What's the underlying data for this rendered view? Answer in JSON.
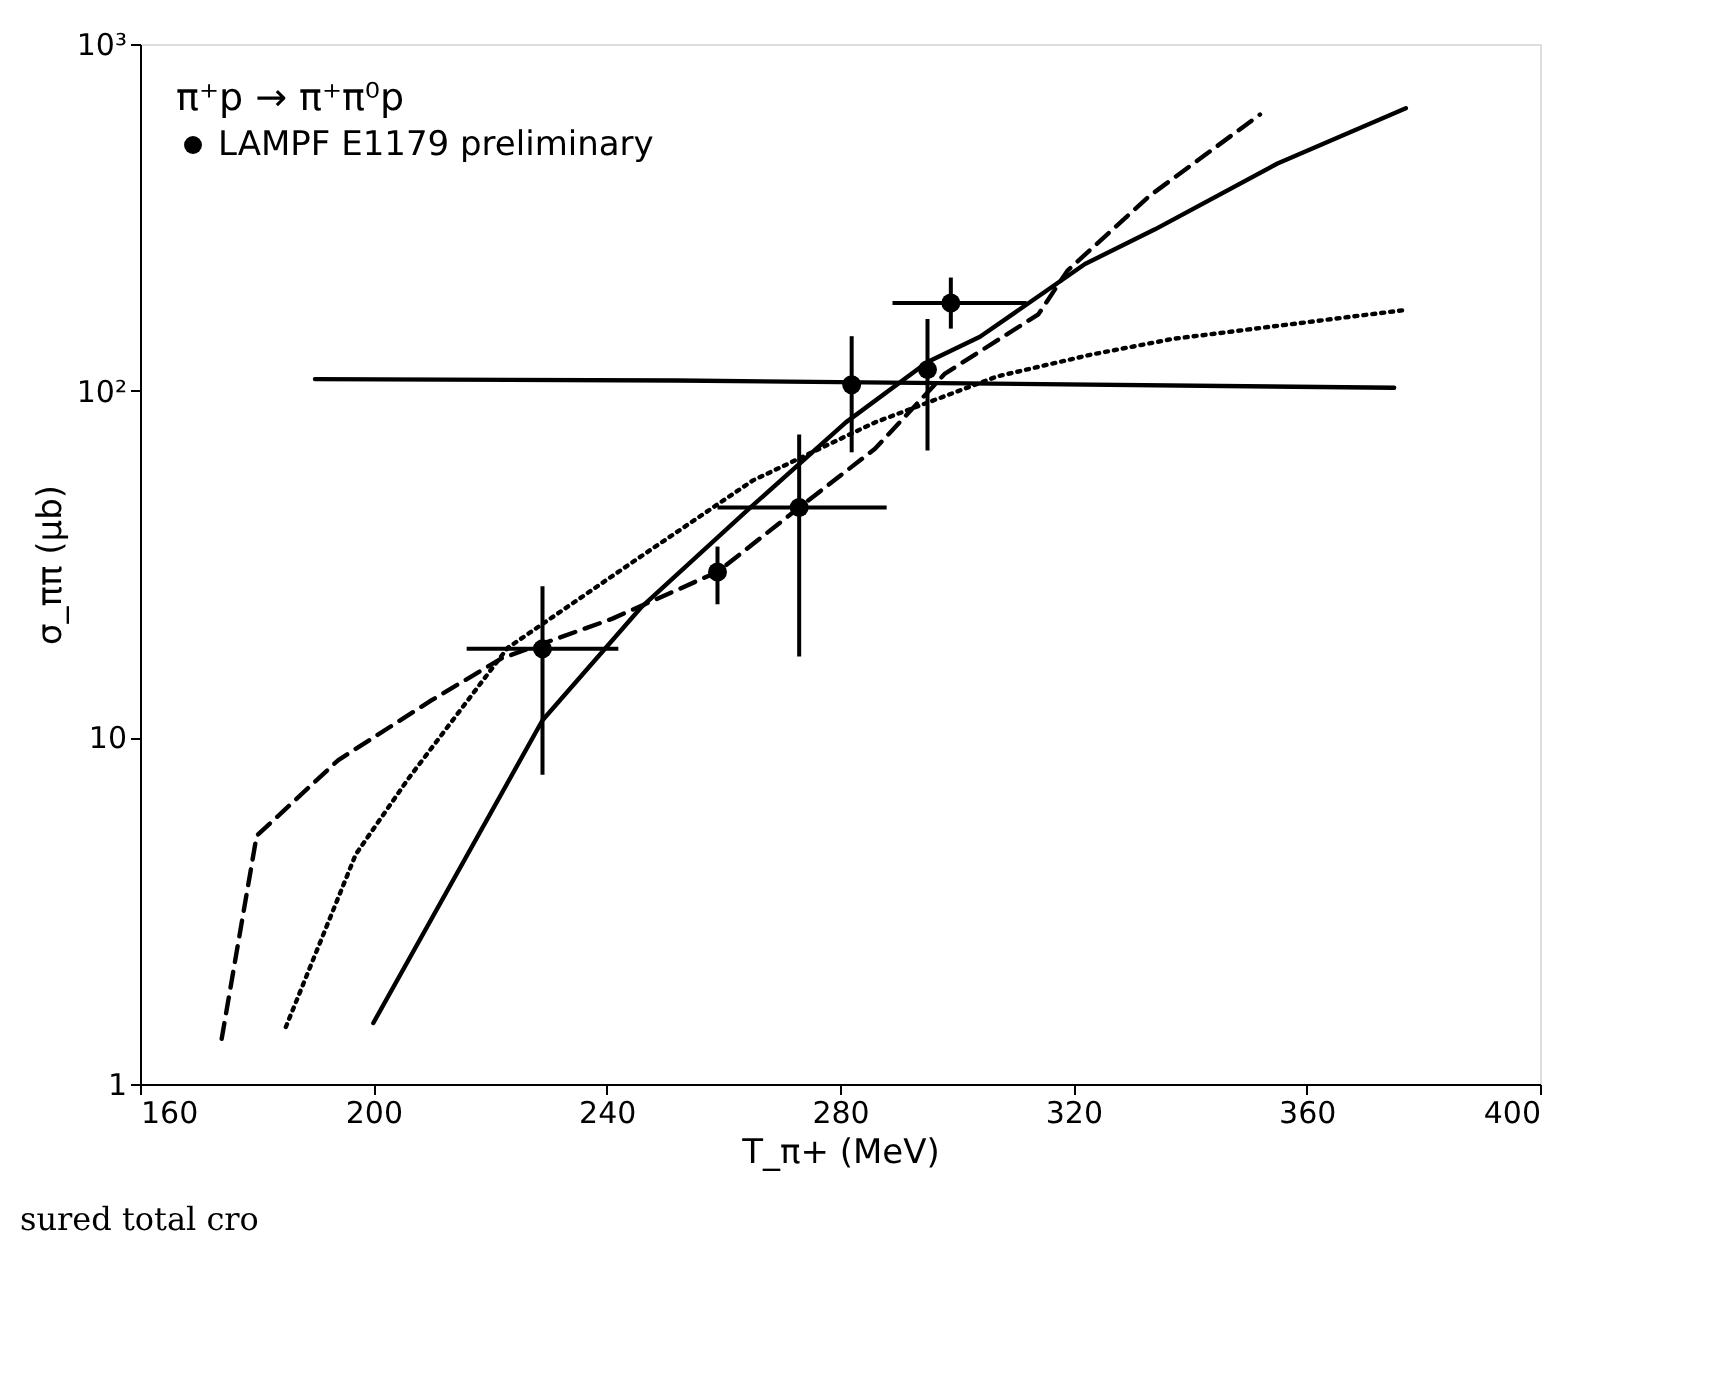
{
  "chart_data": {
    "type": "line",
    "xlabel": "T_π+ (MeV)",
    "ylabel": "σ_ππ (μb)",
    "legend_title": "π⁺p → π⁺π⁰p",
    "legend": "top left",
    "log": "y",
    "grid": false,
    "xlim": [
      160,
      400
    ],
    "xticks": [
      160,
      200,
      240,
      280,
      320,
      360,
      400
    ],
    "ylim": [
      1,
      1000
    ],
    "yticks": [
      1,
      10,
      {
        "value": 100,
        "label": "10²"
      },
      {
        "value": 1000,
        "label": "10³"
      }
    ],
    "annotations": [
      "sured total cro"
    ],
    "series": [
      {
        "color": "#000000",
        "line_style": "solid",
        "marker": "none",
        "x": [
          190,
          252,
          375
        ],
        "values": [
          108,
          107,
          102
        ]
      },
      {
        "color": "#000000",
        "line_style": "solid",
        "marker": "none",
        "x": [
          200,
          229,
          246,
          264,
          281,
          295,
          304,
          322,
          334,
          355,
          377
        ],
        "values": [
          1.5,
          11.2,
          23.8,
          45,
          81,
          121,
          143,
          232,
          292,
          452,
          653
        ]
      },
      {
        "color": "#000000",
        "line_style": "dashed",
        "marker": "none",
        "x": [
          174,
          180,
          194,
          210,
          222,
          241,
          259,
          273,
          286,
          298,
          314,
          319,
          333,
          352
        ],
        "values": [
          1.35,
          5.2,
          8.6,
          12.8,
          16.9,
          22,
          30,
          46,
          68,
          112,
          166,
          222,
          364,
          626
        ]
      },
      {
        "color": "#000000",
        "line_style": "dotted",
        "marker": "none",
        "x": [
          185,
          197,
          206,
          223,
          245,
          265,
          286,
          307,
          323,
          337,
          377
        ],
        "values": [
          1.46,
          4.6,
          7.6,
          18.1,
          32.5,
          55,
          81,
          110,
          127,
          141,
          171
        ]
      },
      {
        "type": "scatter",
        "name": "LAMPF E1179 preliminary",
        "color": "#000000",
        "marker": "circle",
        "x": [
          229,
          259,
          273,
          282,
          295,
          299
        ],
        "values": [
          18,
          30,
          46,
          104,
          115,
          179
        ],
        "errors": [
          [
            7.8,
            27.3
          ],
          [
            24.2,
            35.5
          ],
          [
            17.1,
            74.8
          ],
          [
            66.4,
            143.6
          ],
          [
            67.2,
            161
          ],
          [
            151,
            212
          ]
        ],
        "xerrors": [
          [
            216,
            242
          ],
          null,
          [
            259,
            288
          ],
          null,
          null,
          [
            289,
            312
          ]
        ]
      }
    ]
  }
}
